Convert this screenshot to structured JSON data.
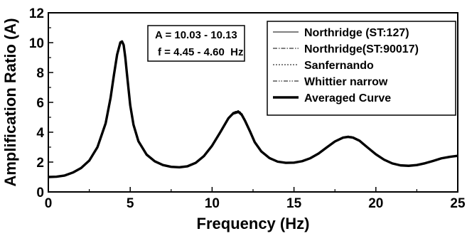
{
  "chart_data": {
    "type": "line",
    "xlabel": "Frequency (Hz)",
    "ylabel": "Amplification Ratio (A)",
    "xlim": [
      0,
      25
    ],
    "ylim": [
      0,
      12
    ],
    "xticks": [
      "0",
      "5",
      "10",
      "15",
      "20",
      "25"
    ],
    "yticks": [
      "0",
      "2",
      "4",
      "6",
      "8",
      "10",
      "12"
    ],
    "grid": false,
    "legend_position": "top-right",
    "annotation": [
      "A = 10.03 - 10.13",
      "f = 4.45 - 4.60  Hz"
    ],
    "x": [
      0,
      0.5,
      1,
      1.5,
      2,
      2.5,
      3,
      3.5,
      3.8,
      4,
      4.2,
      4.4,
      4.5,
      4.6,
      4.7,
      4.8,
      5,
      5.2,
      5.5,
      6,
      6.5,
      7,
      7.5,
      8,
      8.5,
      9,
      9.5,
      10,
      10.5,
      11,
      11.3,
      11.6,
      11.8,
      12,
      12.3,
      12.6,
      13,
      13.5,
      14,
      14.5,
      15,
      15.5,
      16,
      16.5,
      17,
      17.5,
      18,
      18.3,
      18.6,
      19,
      19.5,
      20,
      20.5,
      21,
      21.5,
      22,
      22.5,
      23,
      23.5,
      24,
      24.5,
      25
    ],
    "series": [
      {
        "name": "Northridge (ST:127)",
        "style": "thin-solid",
        "values": [
          1.0,
          1.02,
          1.1,
          1.3,
          1.6,
          2.1,
          3.0,
          4.6,
          6.3,
          7.8,
          9.2,
          10.0,
          10.05,
          9.8,
          9.0,
          7.9,
          5.8,
          4.5,
          3.4,
          2.5,
          2.05,
          1.8,
          1.68,
          1.65,
          1.72,
          1.95,
          2.4,
          3.1,
          4.0,
          4.9,
          5.2,
          5.3,
          5.1,
          4.7,
          4.0,
          3.3,
          2.7,
          2.25,
          2.02,
          1.94,
          1.95,
          2.05,
          2.25,
          2.55,
          2.95,
          3.35,
          3.6,
          3.65,
          3.6,
          3.4,
          2.95,
          2.5,
          2.15,
          1.9,
          1.78,
          1.75,
          1.8,
          1.92,
          2.08,
          2.25,
          2.35,
          2.42
        ]
      },
      {
        "name": "Northridge(ST:90017)",
        "style": "dash-dot",
        "values": [
          1.0,
          1.02,
          1.1,
          1.3,
          1.6,
          2.1,
          3.0,
          4.6,
          6.3,
          7.8,
          9.2,
          10.05,
          10.1,
          9.85,
          9.0,
          7.9,
          5.8,
          4.5,
          3.4,
          2.5,
          2.05,
          1.8,
          1.68,
          1.65,
          1.72,
          1.95,
          2.4,
          3.1,
          4.0,
          4.95,
          5.3,
          5.4,
          5.2,
          4.8,
          4.1,
          3.35,
          2.72,
          2.27,
          2.03,
          1.95,
          1.96,
          2.06,
          2.26,
          2.57,
          2.98,
          3.38,
          3.64,
          3.7,
          3.64,
          3.42,
          2.97,
          2.52,
          2.16,
          1.91,
          1.78,
          1.75,
          1.8,
          1.92,
          2.08,
          2.25,
          2.35,
          2.42
        ]
      },
      {
        "name": "Sanfernando",
        "style": "dotted",
        "values": [
          1.0,
          1.02,
          1.1,
          1.3,
          1.6,
          2.1,
          3.0,
          4.6,
          6.3,
          7.8,
          9.2,
          10.0,
          10.1,
          9.85,
          9.05,
          7.95,
          5.85,
          4.5,
          3.4,
          2.5,
          2.05,
          1.8,
          1.68,
          1.65,
          1.72,
          1.95,
          2.4,
          3.1,
          4.0,
          5.0,
          5.35,
          5.45,
          5.3,
          4.9,
          4.2,
          3.4,
          2.75,
          2.28,
          2.04,
          1.96,
          1.97,
          2.07,
          2.28,
          2.6,
          3.02,
          3.42,
          3.68,
          3.75,
          3.7,
          3.48,
          3.0,
          2.54,
          2.17,
          1.92,
          1.79,
          1.76,
          1.81,
          1.93,
          2.09,
          2.26,
          2.36,
          2.43
        ]
      },
      {
        "name": "Whittier narrow",
        "style": "dash-dot-dot",
        "values": [
          1.0,
          1.02,
          1.1,
          1.3,
          1.6,
          2.1,
          3.0,
          4.6,
          6.3,
          7.8,
          9.2,
          10.03,
          10.08,
          9.82,
          9.0,
          7.9,
          5.8,
          4.5,
          3.4,
          2.5,
          2.05,
          1.8,
          1.68,
          1.65,
          1.72,
          1.95,
          2.4,
          3.1,
          4.0,
          4.9,
          5.25,
          5.35,
          5.15,
          4.75,
          4.05,
          3.32,
          2.71,
          2.26,
          2.02,
          1.94,
          1.95,
          2.05,
          2.25,
          2.56,
          2.96,
          3.36,
          3.62,
          3.67,
          3.62,
          3.4,
          2.95,
          2.5,
          2.15,
          1.9,
          1.78,
          1.75,
          1.8,
          1.92,
          2.08,
          2.25,
          2.35,
          2.42
        ]
      },
      {
        "name": "Averaged Curve",
        "style": "thick-solid",
        "values": [
          1.0,
          1.02,
          1.1,
          1.3,
          1.6,
          2.1,
          3.0,
          4.6,
          6.3,
          7.8,
          9.2,
          10.02,
          10.08,
          9.84,
          9.01,
          7.91,
          5.81,
          4.5,
          3.4,
          2.5,
          2.05,
          1.8,
          1.68,
          1.65,
          1.72,
          1.95,
          2.4,
          3.1,
          4.0,
          4.94,
          5.28,
          5.38,
          5.19,
          4.79,
          4.09,
          3.34,
          2.72,
          2.27,
          2.03,
          1.95,
          1.96,
          2.06,
          2.26,
          2.57,
          2.98,
          3.38,
          3.64,
          3.69,
          3.64,
          3.43,
          2.97,
          2.52,
          2.16,
          1.91,
          1.78,
          1.75,
          1.8,
          1.92,
          2.08,
          2.25,
          2.35,
          2.42
        ]
      }
    ]
  }
}
